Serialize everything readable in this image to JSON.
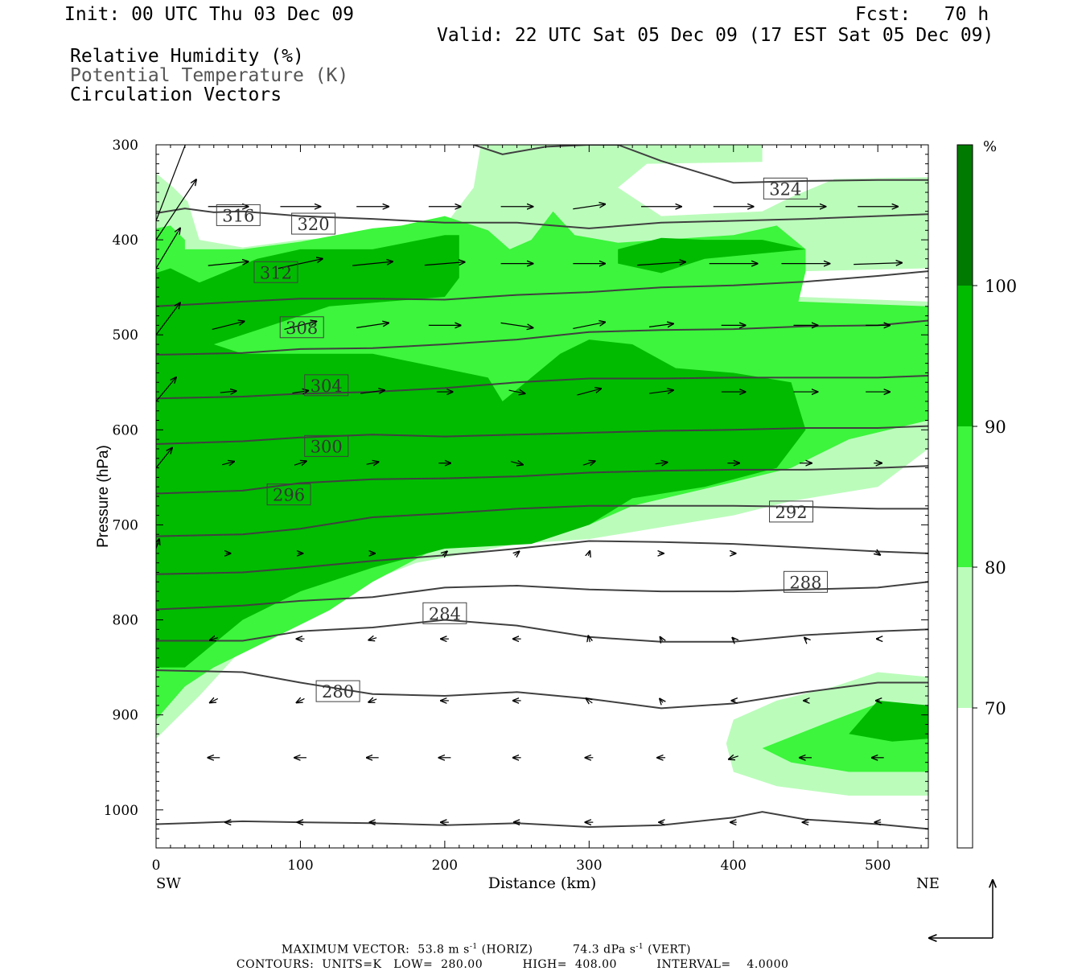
{
  "header": {
    "init": "Init: 00 UTC Thu 03 Dec 09",
    "fcst": "Fcst:   70 h",
    "valid": "Valid: 22 UTC Sat 05 Dec 09 (17 EST Sat 05 Dec 09)",
    "fields": [
      "Relative Humidity (%)",
      "Potential Temperature (K)",
      "Circulation Vectors"
    ]
  },
  "colors": {
    "rh_70_80": "#bbfcbb",
    "rh_80_90": "#3cf53c",
    "rh_90_100": "#00bb00",
    "rh_100": "#007a00",
    "theta_line": "#404040"
  },
  "chart_data": {
    "type": "cross-section",
    "xlabel": "Distance (km)",
    "ylabel": "Pressure (hPa)",
    "x_end_labels": [
      "SW",
      "NE"
    ],
    "xlim": [
      0,
      535
    ],
    "ylim": [
      1040,
      300
    ],
    "x_ticks": [
      0,
      100,
      200,
      300,
      400,
      500
    ],
    "y_ticks": [
      300,
      400,
      500,
      600,
      700,
      800,
      900,
      1000
    ],
    "colorbar": {
      "unit": "%",
      "levels": [
        70,
        80,
        90,
        100
      ],
      "level_labels": [
        "70",
        "80",
        "90",
        "100"
      ]
    },
    "theta_contours": [
      {
        "value": 280,
        "label": "280",
        "label_pos": [
          126,
          875
        ],
        "points": [
          [
            0,
            853
          ],
          [
            60,
            855
          ],
          [
            100,
            866
          ],
          [
            150,
            878
          ],
          [
            200,
            880
          ],
          [
            250,
            876
          ],
          [
            300,
            883
          ],
          [
            350,
            893
          ],
          [
            400,
            888
          ],
          [
            450,
            876
          ],
          [
            500,
            866
          ],
          [
            535,
            866
          ]
        ]
      },
      {
        "value": 284,
        "label": "284",
        "label_pos": [
          200,
          793
        ],
        "points": [
          [
            0,
            822
          ],
          [
            60,
            822
          ],
          [
            100,
            812
          ],
          [
            150,
            808
          ],
          [
            200,
            800
          ],
          [
            250,
            806
          ],
          [
            300,
            818
          ],
          [
            350,
            823
          ],
          [
            400,
            823
          ],
          [
            450,
            816
          ],
          [
            500,
            812
          ],
          [
            535,
            810
          ]
        ]
      },
      {
        "value": 288,
        "label": "288",
        "label_pos": [
          450,
          760
        ],
        "points": [
          [
            0,
            789
          ],
          [
            60,
            785
          ],
          [
            100,
            780
          ],
          [
            150,
            776
          ],
          [
            200,
            766
          ],
          [
            250,
            764
          ],
          [
            300,
            768
          ],
          [
            350,
            770
          ],
          [
            400,
            770
          ],
          [
            450,
            768
          ],
          [
            500,
            766
          ],
          [
            535,
            760
          ]
        ]
      },
      {
        "value": 292,
        "label": "292",
        "label_pos": [
          440,
          686
        ],
        "points": [
          [
            0,
            752
          ],
          [
            60,
            750
          ],
          [
            100,
            745
          ],
          [
            150,
            738
          ],
          [
            200,
            732
          ],
          [
            250,
            725
          ],
          [
            300,
            717
          ],
          [
            350,
            718
          ],
          [
            400,
            720
          ],
          [
            450,
            724
          ],
          [
            500,
            728
          ],
          [
            535,
            730
          ]
        ]
      },
      {
        "value": 296,
        "label": "296",
        "label_pos": [
          92,
          668
        ],
        "points": [
          [
            0,
            712
          ],
          [
            60,
            710
          ],
          [
            100,
            704
          ],
          [
            150,
            692
          ],
          [
            200,
            688
          ],
          [
            250,
            683
          ],
          [
            300,
            680
          ],
          [
            350,
            680
          ],
          [
            400,
            680
          ],
          [
            450,
            681
          ],
          [
            500,
            683
          ],
          [
            535,
            683
          ]
        ]
      },
      {
        "value": 300,
        "label": "300",
        "label_pos": [
          118,
          617
        ],
        "points": [
          [
            0,
            667
          ],
          [
            60,
            664
          ],
          [
            100,
            656
          ],
          [
            150,
            652
          ],
          [
            200,
            651
          ],
          [
            250,
            649
          ],
          [
            300,
            645
          ],
          [
            350,
            643
          ],
          [
            400,
            642
          ],
          [
            450,
            642
          ],
          [
            500,
            640
          ],
          [
            535,
            638
          ]
        ]
      },
      {
        "value": 304,
        "label": "304",
        "label_pos": [
          118,
          553
        ],
        "points": [
          [
            0,
            615
          ],
          [
            60,
            612
          ],
          [
            100,
            608
          ],
          [
            150,
            605
          ],
          [
            200,
            607
          ],
          [
            250,
            605
          ],
          [
            300,
            603
          ],
          [
            350,
            601
          ],
          [
            400,
            600
          ],
          [
            450,
            598
          ],
          [
            500,
            598
          ],
          [
            535,
            596
          ]
        ]
      },
      {
        "value": 308,
        "label": "308",
        "label_pos": [
          101,
          492
        ],
        "points": [
          [
            0,
            567
          ],
          [
            60,
            565
          ],
          [
            100,
            562
          ],
          [
            150,
            560
          ],
          [
            200,
            556
          ],
          [
            250,
            550
          ],
          [
            300,
            546
          ],
          [
            350,
            546
          ],
          [
            400,
            545
          ],
          [
            450,
            545
          ],
          [
            500,
            545
          ],
          [
            535,
            543
          ]
        ]
      },
      {
        "value": 312,
        "label": "312",
        "label_pos": [
          83,
          434
        ],
        "points": [
          [
            0,
            521
          ],
          [
            60,
            519
          ],
          [
            100,
            515
          ],
          [
            150,
            514
          ],
          [
            200,
            510
          ],
          [
            250,
            505
          ],
          [
            300,
            497
          ],
          [
            350,
            495
          ],
          [
            400,
            494
          ],
          [
            450,
            491
          ],
          [
            500,
            490
          ],
          [
            535,
            485
          ]
        ]
      },
      {
        "value": 316,
        "label": "316",
        "label_pos": [
          57,
          374
        ],
        "points": [
          [
            0,
            470
          ],
          [
            60,
            465
          ],
          [
            100,
            462
          ],
          [
            150,
            462
          ],
          [
            200,
            463
          ],
          [
            250,
            458
          ],
          [
            300,
            455
          ],
          [
            350,
            450
          ],
          [
            400,
            448
          ],
          [
            450,
            444
          ],
          [
            500,
            438
          ],
          [
            535,
            433
          ]
        ]
      },
      {
        "value": 320,
        "label": "320",
        "label_pos": [
          109,
          383
        ],
        "points": [
          [
            0,
            372
          ],
          [
            20,
            367
          ],
          [
            40,
            371
          ],
          [
            60,
            370
          ],
          [
            100,
            375
          ],
          [
            150,
            378
          ],
          [
            200,
            382
          ],
          [
            250,
            382
          ],
          [
            300,
            388
          ],
          [
            350,
            382
          ],
          [
            400,
            380
          ],
          [
            450,
            378
          ],
          [
            500,
            375
          ],
          [
            535,
            373
          ]
        ]
      },
      {
        "value": 324,
        "label": "324",
        "label_pos": [
          436,
          346
        ],
        "points": [
          [
            220,
            300
          ],
          [
            240,
            310
          ],
          [
            270,
            302
          ],
          [
            300,
            300
          ],
          [
            320,
            300
          ],
          [
            350,
            317
          ],
          [
            400,
            340
          ],
          [
            450,
            338
          ],
          [
            500,
            337
          ],
          [
            535,
            337
          ]
        ]
      }
    ],
    "theta_1012_line": [
      [
        0,
        1015
      ],
      [
        60,
        1012
      ],
      [
        100,
        1013
      ],
      [
        150,
        1014
      ],
      [
        200,
        1016
      ],
      [
        250,
        1014
      ],
      [
        300,
        1018
      ],
      [
        350,
        1016
      ],
      [
        400,
        1008
      ],
      [
        420,
        1002
      ],
      [
        450,
        1010
      ],
      [
        500,
        1015
      ],
      [
        535,
        1020
      ]
    ],
    "max_vector": {
      "horiz_value": "53.8",
      "horiz_unit": "m s",
      "vert_value": "74.3",
      "vert_unit": "dPa s",
      "exponent": "-1"
    },
    "contour_info": {
      "units": "K",
      "low": "280.00",
      "high": "408.00",
      "interval": "4.0000"
    }
  },
  "footer": {
    "max_vector_label": "MAXIMUM VECTOR:",
    "horiz_tag": "(HORIZ)",
    "vert_tag": "(VERT)",
    "contours_label": "CONTOURS:",
    "units_label": "UNITS=",
    "low_label": "LOW=",
    "high_label": "HIGH=",
    "interval_label": "INTERVAL="
  }
}
